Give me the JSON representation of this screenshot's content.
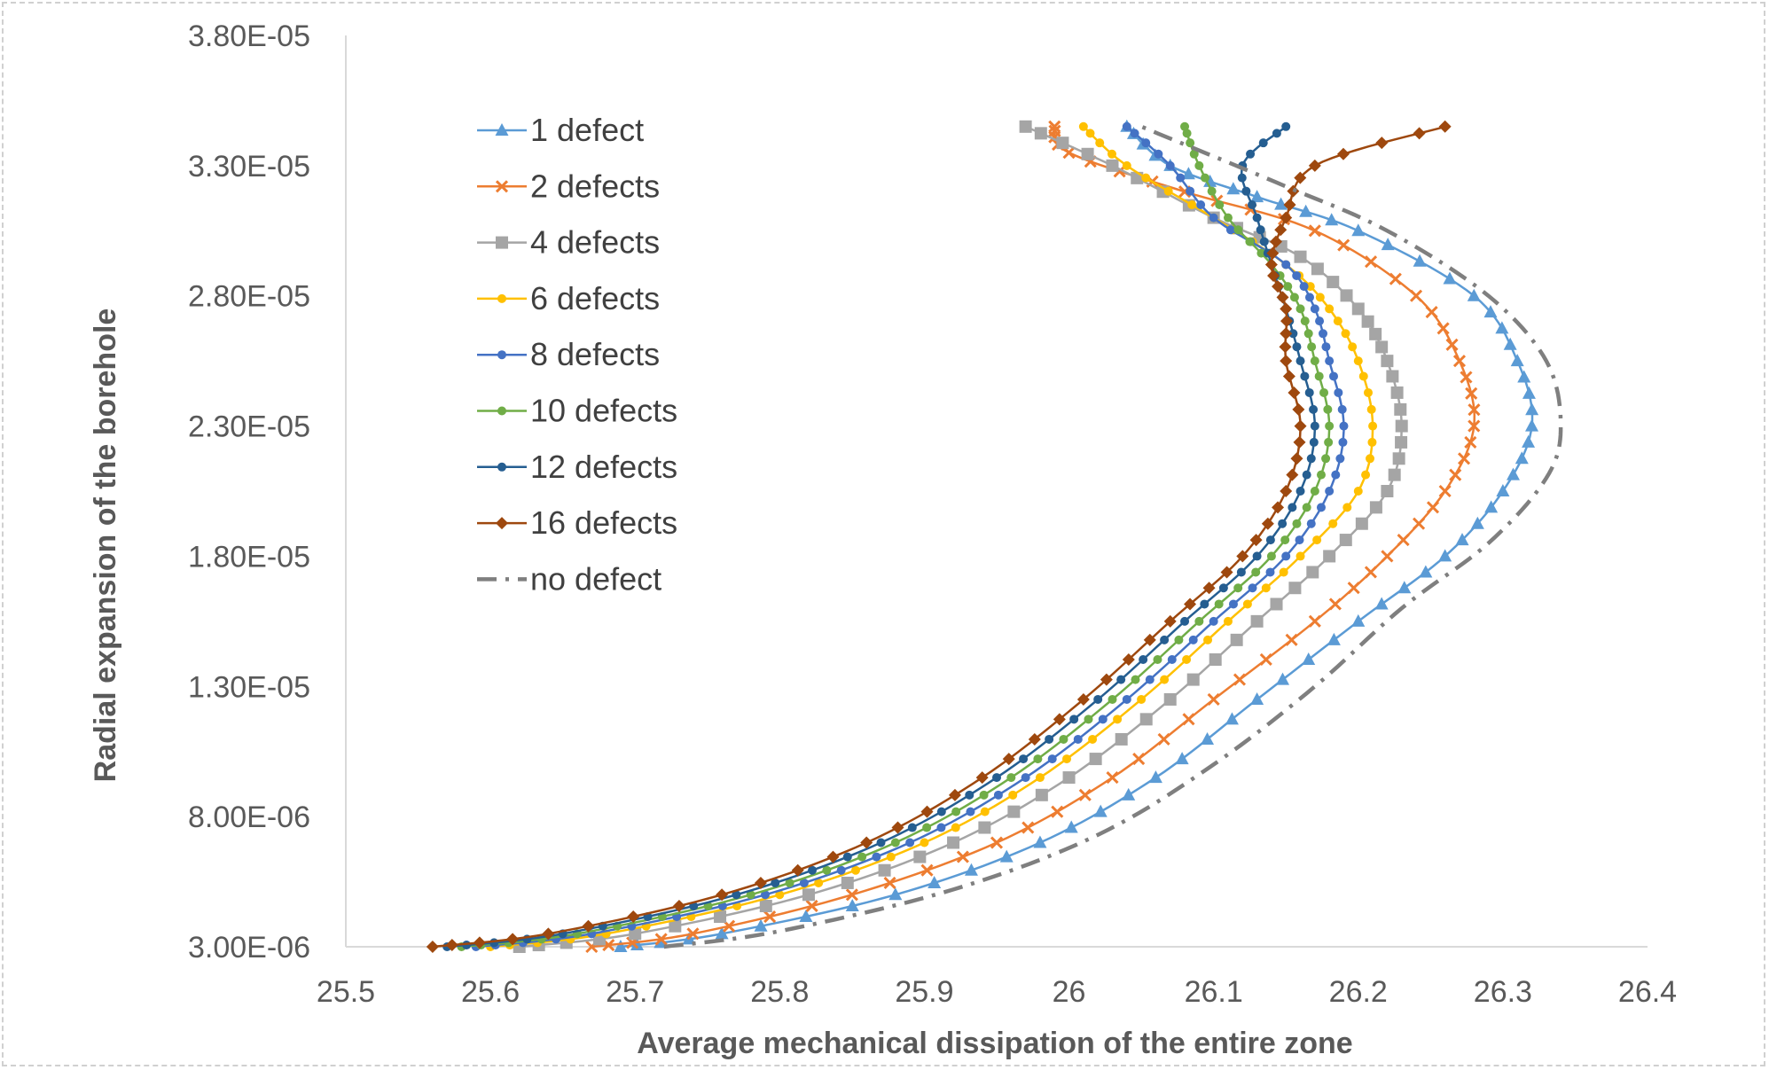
{
  "chart_data": {
    "type": "scatter",
    "title": "",
    "xlabel": "Average mechanical dissipation of the entire zone",
    "ylabel": "Radial expansion of the borehole",
    "xlim": [
      25.5,
      26.4
    ],
    "ylim": [
      3e-06,
      3.8e-05
    ],
    "x_ticks": [
      "25.5",
      "25.6",
      "25.7",
      "25.8",
      "25.9",
      "26",
      "26.1",
      "26.2",
      "26.3",
      "26.4"
    ],
    "y_ticks": [
      "3.00E-06",
      "8.00E-06",
      "1.30E-05",
      "1.80E-05",
      "2.30E-05",
      "2.80E-05",
      "3.30E-05",
      "3.80E-05"
    ],
    "grid": false,
    "legend_position": "top-left",
    "series": [
      {
        "name": "1 defect",
        "color": "#5B9BD5",
        "marker": "triangle",
        "dash": "solid",
        "points": [
          [
            25.69,
            3e-06
          ],
          [
            25.76,
            3.5e-06
          ],
          [
            25.88,
            5e-06
          ],
          [
            25.98,
            7e-06
          ],
          [
            26.06,
            9.5e-06
          ],
          [
            26.13,
            1.25e-05
          ],
          [
            26.2,
            1.55e-05
          ],
          [
            26.26,
            1.8e-05
          ],
          [
            26.3,
            2.05e-05
          ],
          [
            26.32,
            2.3e-05
          ],
          [
            26.31,
            2.55e-05
          ],
          [
            26.28,
            2.8e-05
          ],
          [
            26.2,
            3.05e-05
          ],
          [
            26.13,
            3.18e-05
          ],
          [
            26.07,
            3.3e-05
          ],
          [
            26.04,
            3.45e-05
          ]
        ]
      },
      {
        "name": "2 defects",
        "color": "#ED7D31",
        "marker": "x",
        "dash": "solid",
        "points": [
          [
            25.67,
            3e-06
          ],
          [
            25.74,
            3.5e-06
          ],
          [
            25.85,
            5e-06
          ],
          [
            25.95,
            7e-06
          ],
          [
            26.03,
            9.5e-06
          ],
          [
            26.1,
            1.25e-05
          ],
          [
            26.17,
            1.55e-05
          ],
          [
            26.22,
            1.8e-05
          ],
          [
            26.26,
            2.05e-05
          ],
          [
            26.28,
            2.3e-05
          ],
          [
            26.27,
            2.55e-05
          ],
          [
            26.24,
            2.8e-05
          ],
          [
            26.17,
            3.05e-05
          ],
          [
            26.08,
            3.2e-05
          ],
          [
            26.0,
            3.35e-05
          ],
          [
            25.99,
            3.45e-05
          ]
        ]
      },
      {
        "name": "4 defects",
        "color": "#A5A5A5",
        "marker": "square",
        "dash": "solid",
        "points": [
          [
            25.62,
            3e-06
          ],
          [
            25.7,
            3.5e-06
          ],
          [
            25.82,
            5e-06
          ],
          [
            25.92,
            7e-06
          ],
          [
            26.0,
            9.5e-06
          ],
          [
            26.07,
            1.25e-05
          ],
          [
            26.13,
            1.55e-05
          ],
          [
            26.18,
            1.8e-05
          ],
          [
            26.22,
            2.05e-05
          ],
          [
            26.23,
            2.3e-05
          ],
          [
            26.22,
            2.55e-05
          ],
          [
            26.2,
            2.75e-05
          ],
          [
            26.16,
            2.95e-05
          ],
          [
            26.1,
            3.1e-05
          ],
          [
            26.03,
            3.3e-05
          ],
          [
            25.97,
            3.45e-05
          ]
        ]
      },
      {
        "name": "6 defects",
        "color": "#FFC000",
        "marker": "circle",
        "dash": "solid",
        "points": [
          [
            25.6,
            3e-06
          ],
          [
            25.68,
            3.5e-06
          ],
          [
            25.8,
            5e-06
          ],
          [
            25.9,
            7e-06
          ],
          [
            25.98,
            9.5e-06
          ],
          [
            26.05,
            1.25e-05
          ],
          [
            26.11,
            1.55e-05
          ],
          [
            26.16,
            1.8e-05
          ],
          [
            26.2,
            2.05e-05
          ],
          [
            26.21,
            2.3e-05
          ],
          [
            26.2,
            2.55e-05
          ],
          [
            26.18,
            2.75e-05
          ],
          [
            26.15,
            2.92e-05
          ],
          [
            26.1,
            3.1e-05
          ],
          [
            26.04,
            3.3e-05
          ],
          [
            26.01,
            3.45e-05
          ]
        ]
      },
      {
        "name": "8 defects",
        "color": "#4472C4",
        "marker": "circle",
        "dash": "solid",
        "points": [
          [
            25.59,
            3e-06
          ],
          [
            25.67,
            3.5e-06
          ],
          [
            25.79,
            5e-06
          ],
          [
            25.89,
            7e-06
          ],
          [
            25.97,
            9.5e-06
          ],
          [
            26.04,
            1.25e-05
          ],
          [
            26.1,
            1.55e-05
          ],
          [
            26.15,
            1.8e-05
          ],
          [
            26.18,
            2.05e-05
          ],
          [
            26.19,
            2.3e-05
          ],
          [
            26.18,
            2.55e-05
          ],
          [
            26.17,
            2.75e-05
          ],
          [
            26.15,
            2.92e-05
          ],
          [
            26.1,
            3.1e-05
          ],
          [
            26.07,
            3.3e-05
          ],
          [
            26.04,
            3.45e-05
          ]
        ]
      },
      {
        "name": "10 defects",
        "color": "#70AD47",
        "marker": "circle",
        "dash": "solid",
        "points": [
          [
            25.58,
            3e-06
          ],
          [
            25.66,
            3.5e-06
          ],
          [
            25.78,
            5e-06
          ],
          [
            25.88,
            7e-06
          ],
          [
            25.96,
            9.5e-06
          ],
          [
            26.03,
            1.25e-05
          ],
          [
            26.09,
            1.55e-05
          ],
          [
            26.14,
            1.8e-05
          ],
          [
            26.17,
            2.05e-05
          ],
          [
            26.18,
            2.3e-05
          ],
          [
            26.17,
            2.55e-05
          ],
          [
            26.16,
            2.75e-05
          ],
          [
            26.14,
            2.92e-05
          ],
          [
            26.11,
            3.1e-05
          ],
          [
            26.09,
            3.3e-05
          ],
          [
            26.08,
            3.45e-05
          ]
        ]
      },
      {
        "name": "12 defects",
        "color": "#255E91",
        "marker": "circle",
        "dash": "solid",
        "points": [
          [
            25.57,
            3e-06
          ],
          [
            25.65,
            3.5e-06
          ],
          [
            25.77,
            5e-06
          ],
          [
            25.87,
            7e-06
          ],
          [
            25.95,
            9.5e-06
          ],
          [
            26.02,
            1.25e-05
          ],
          [
            26.08,
            1.55e-05
          ],
          [
            26.13,
            1.8e-05
          ],
          [
            26.16,
            2.05e-05
          ],
          [
            26.17,
            2.3e-05
          ],
          [
            26.16,
            2.55e-05
          ],
          [
            26.15,
            2.75e-05
          ],
          [
            26.14,
            2.92e-05
          ],
          [
            26.13,
            3.1e-05
          ],
          [
            26.12,
            3.3e-05
          ],
          [
            26.15,
            3.45e-05
          ]
        ]
      },
      {
        "name": "16 defects",
        "color": "#9E480E",
        "marker": "diamond",
        "dash": "solid",
        "points": [
          [
            25.56,
            3e-06
          ],
          [
            25.64,
            3.5e-06
          ],
          [
            25.76,
            5e-06
          ],
          [
            25.86,
            7e-06
          ],
          [
            25.94,
            9.5e-06
          ],
          [
            26.01,
            1.25e-05
          ],
          [
            26.07,
            1.55e-05
          ],
          [
            26.12,
            1.8e-05
          ],
          [
            26.15,
            2.05e-05
          ],
          [
            26.16,
            2.3e-05
          ],
          [
            26.15,
            2.55e-05
          ],
          [
            26.15,
            2.75e-05
          ],
          [
            26.14,
            2.92e-05
          ],
          [
            26.15,
            3.1e-05
          ],
          [
            26.17,
            3.3e-05
          ],
          [
            26.26,
            3.45e-05
          ]
        ]
      },
      {
        "name": "no defect",
        "color": "#7F7F7F",
        "marker": "none",
        "dash": "dashdot",
        "points": [
          [
            25.72,
            3e-06
          ],
          [
            25.8,
            3.6e-06
          ],
          [
            25.92,
            5.2e-06
          ],
          [
            26.02,
            7.3e-06
          ],
          [
            26.1,
            1e-05
          ],
          [
            26.17,
            1.3e-05
          ],
          [
            26.23,
            1.6e-05
          ],
          [
            26.29,
            1.85e-05
          ],
          [
            26.33,
            2.1e-05
          ],
          [
            26.34,
            2.3e-05
          ],
          [
            26.33,
            2.55e-05
          ],
          [
            26.29,
            2.8e-05
          ],
          [
            26.22,
            3.05e-05
          ],
          [
            26.15,
            3.22e-05
          ],
          [
            26.05,
            3.45e-05
          ]
        ]
      }
    ]
  }
}
